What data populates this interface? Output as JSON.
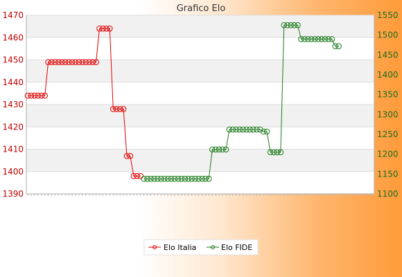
{
  "chart_data": {
    "type": "line",
    "title": "Grafico Elo",
    "xlabel": "",
    "ylabel": "",
    "y_left": {
      "ylim": [
        1390,
        1470
      ],
      "ticks": [
        1390,
        1400,
        1410,
        1420,
        1430,
        1440,
        1450,
        1460,
        1470
      ],
      "color": "#c00000"
    },
    "y_right": {
      "ylim": [
        1100,
        1550
      ],
      "ticks": [
        1100,
        1150,
        1200,
        1250,
        1300,
        1350,
        1400,
        1450,
        1500,
        1550
      ],
      "color": "#1c6b1c"
    },
    "grid": true,
    "legend_position": "bottom",
    "x_point_count": 102,
    "series": [
      {
        "name": "Elo Italia",
        "axis": "left",
        "color": "#e00000",
        "points": [
          [
            0,
            1434
          ],
          [
            1,
            1434
          ],
          [
            2,
            1434
          ],
          [
            3,
            1434
          ],
          [
            4,
            1434
          ],
          [
            5,
            1434
          ],
          [
            6,
            1449
          ],
          [
            7,
            1449
          ],
          [
            8,
            1449
          ],
          [
            9,
            1449
          ],
          [
            10,
            1449
          ],
          [
            11,
            1449
          ],
          [
            12,
            1449
          ],
          [
            13,
            1449
          ],
          [
            14,
            1449
          ],
          [
            15,
            1449
          ],
          [
            16,
            1449
          ],
          [
            17,
            1449
          ],
          [
            18,
            1449
          ],
          [
            19,
            1449
          ],
          [
            20,
            1449
          ],
          [
            21,
            1464
          ],
          [
            22,
            1464
          ],
          [
            23,
            1464
          ],
          [
            24,
            1464
          ],
          [
            25,
            1428
          ],
          [
            26,
            1428
          ],
          [
            27,
            1428
          ],
          [
            28,
            1428
          ],
          [
            29,
            1407
          ],
          [
            30,
            1407
          ],
          [
            31,
            1398
          ],
          [
            32,
            1398
          ],
          [
            33,
            1398
          ]
        ]
      },
      {
        "name": "Elo FIDE",
        "axis": "right",
        "color": "#1c7a1c",
        "points": [
          [
            34,
            1138
          ],
          [
            35,
            1138
          ],
          [
            36,
            1138
          ],
          [
            37,
            1138
          ],
          [
            38,
            1138
          ],
          [
            39,
            1138
          ],
          [
            40,
            1138
          ],
          [
            41,
            1138
          ],
          [
            42,
            1138
          ],
          [
            43,
            1138
          ],
          [
            44,
            1138
          ],
          [
            45,
            1138
          ],
          [
            46,
            1138
          ],
          [
            47,
            1138
          ],
          [
            48,
            1138
          ],
          [
            49,
            1138
          ],
          [
            50,
            1138
          ],
          [
            51,
            1138
          ],
          [
            52,
            1138
          ],
          [
            53,
            1138
          ],
          [
            54,
            1212
          ],
          [
            55,
            1212
          ],
          [
            56,
            1212
          ],
          [
            57,
            1212
          ],
          [
            58,
            1212
          ],
          [
            59,
            1262
          ],
          [
            60,
            1262
          ],
          [
            61,
            1262
          ],
          [
            62,
            1262
          ],
          [
            63,
            1262
          ],
          [
            64,
            1262
          ],
          [
            65,
            1262
          ],
          [
            66,
            1262
          ],
          [
            67,
            1262
          ],
          [
            68,
            1262
          ],
          [
            69,
            1257
          ],
          [
            70,
            1257
          ],
          [
            71,
            1205
          ],
          [
            72,
            1205
          ],
          [
            73,
            1205
          ],
          [
            74,
            1205
          ],
          [
            75,
            1525
          ],
          [
            76,
            1525
          ],
          [
            77,
            1525
          ],
          [
            78,
            1525
          ],
          [
            79,
            1525
          ],
          [
            80,
            1490
          ],
          [
            81,
            1490
          ],
          [
            82,
            1490
          ],
          [
            83,
            1490
          ],
          [
            84,
            1490
          ],
          [
            85,
            1490
          ],
          [
            86,
            1490
          ],
          [
            87,
            1490
          ],
          [
            88,
            1490
          ],
          [
            89,
            1490
          ],
          [
            90,
            1472
          ],
          [
            91,
            1472
          ]
        ]
      }
    ]
  }
}
